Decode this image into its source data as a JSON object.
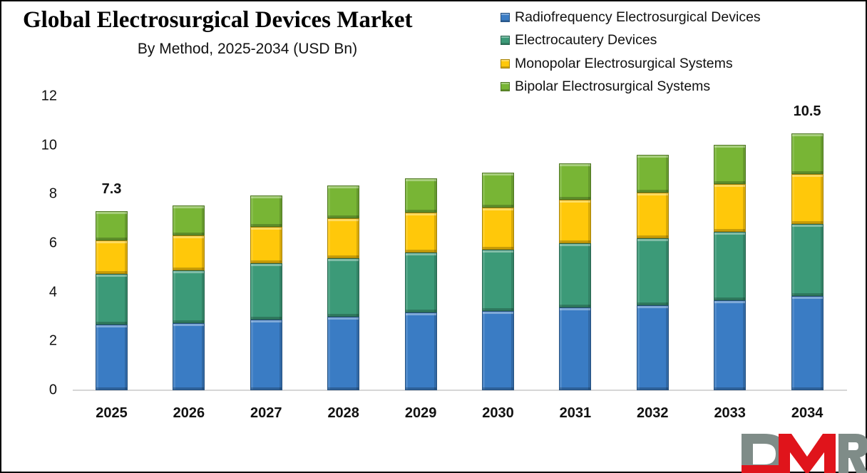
{
  "header": {
    "title": "Global Electrosurgical Devices Market",
    "subtitle": "By Method, 2025-2034 (USD Bn)"
  },
  "legend": [
    {
      "label": "Radiofrequency Electrosurgical Devices",
      "color": "#3a7cc4"
    },
    {
      "label": "Electrocautery Devices",
      "color": "#3c9a78"
    },
    {
      "label": "Monopolar Electrosurgical Systems",
      "color": "#ffc80a"
    },
    {
      "label": "Bipolar Electrosurgical Systems",
      "color": "#78b535"
    }
  ],
  "y_axis": {
    "ticks": [
      "0",
      "2",
      "4",
      "6",
      "8",
      "10",
      "12"
    ]
  },
  "annotations": {
    "first_total": "7.3",
    "last_total": "10.5"
  },
  "logo": {
    "text": "DMR",
    "gray": "#7f8c88",
    "red": "#e0141b"
  },
  "chart_data": {
    "type": "bar",
    "stacked": true,
    "title": "Global Electrosurgical Devices Market",
    "subtitle": "By Method, 2025-2034 (USD Bn)",
    "xlabel": "",
    "ylabel": "",
    "ylim": [
      0,
      12
    ],
    "yticks": [
      0,
      2,
      4,
      6,
      8,
      10,
      12
    ],
    "grid": false,
    "legend_position": "top-right",
    "categories": [
      "2025",
      "2026",
      "2027",
      "2028",
      "2029",
      "2030",
      "2031",
      "2032",
      "2033",
      "2034"
    ],
    "series": [
      {
        "name": "Radiofrequency Electrosurgical Devices",
        "color": "#3a7cc4",
        "values": [
          2.68,
          2.74,
          2.88,
          3.0,
          3.17,
          3.23,
          3.38,
          3.47,
          3.67,
          3.84
        ]
      },
      {
        "name": "Electrocautery Devices",
        "color": "#3c9a78",
        "values": [
          2.07,
          2.16,
          2.3,
          2.39,
          2.45,
          2.5,
          2.62,
          2.74,
          2.8,
          2.94
        ]
      },
      {
        "name": "Monopolar Electrosurgical Systems",
        "color": "#ffc80a",
        "values": [
          1.37,
          1.43,
          1.49,
          1.63,
          1.63,
          1.72,
          1.78,
          1.86,
          1.95,
          2.04
        ]
      },
      {
        "name": "Bipolar Electrosurgical Systems",
        "color": "#78b535",
        "values": [
          1.18,
          1.22,
          1.28,
          1.34,
          1.4,
          1.43,
          1.49,
          1.54,
          1.6,
          1.68
        ]
      }
    ],
    "totals": [
      7.3,
      7.55,
      7.95,
      8.36,
      8.65,
      8.88,
      9.27,
      9.61,
      10.02,
      10.5
    ],
    "annotations": [
      {
        "category": "2025",
        "text": "7.3"
      },
      {
        "category": "2034",
        "text": "10.5"
      }
    ]
  }
}
